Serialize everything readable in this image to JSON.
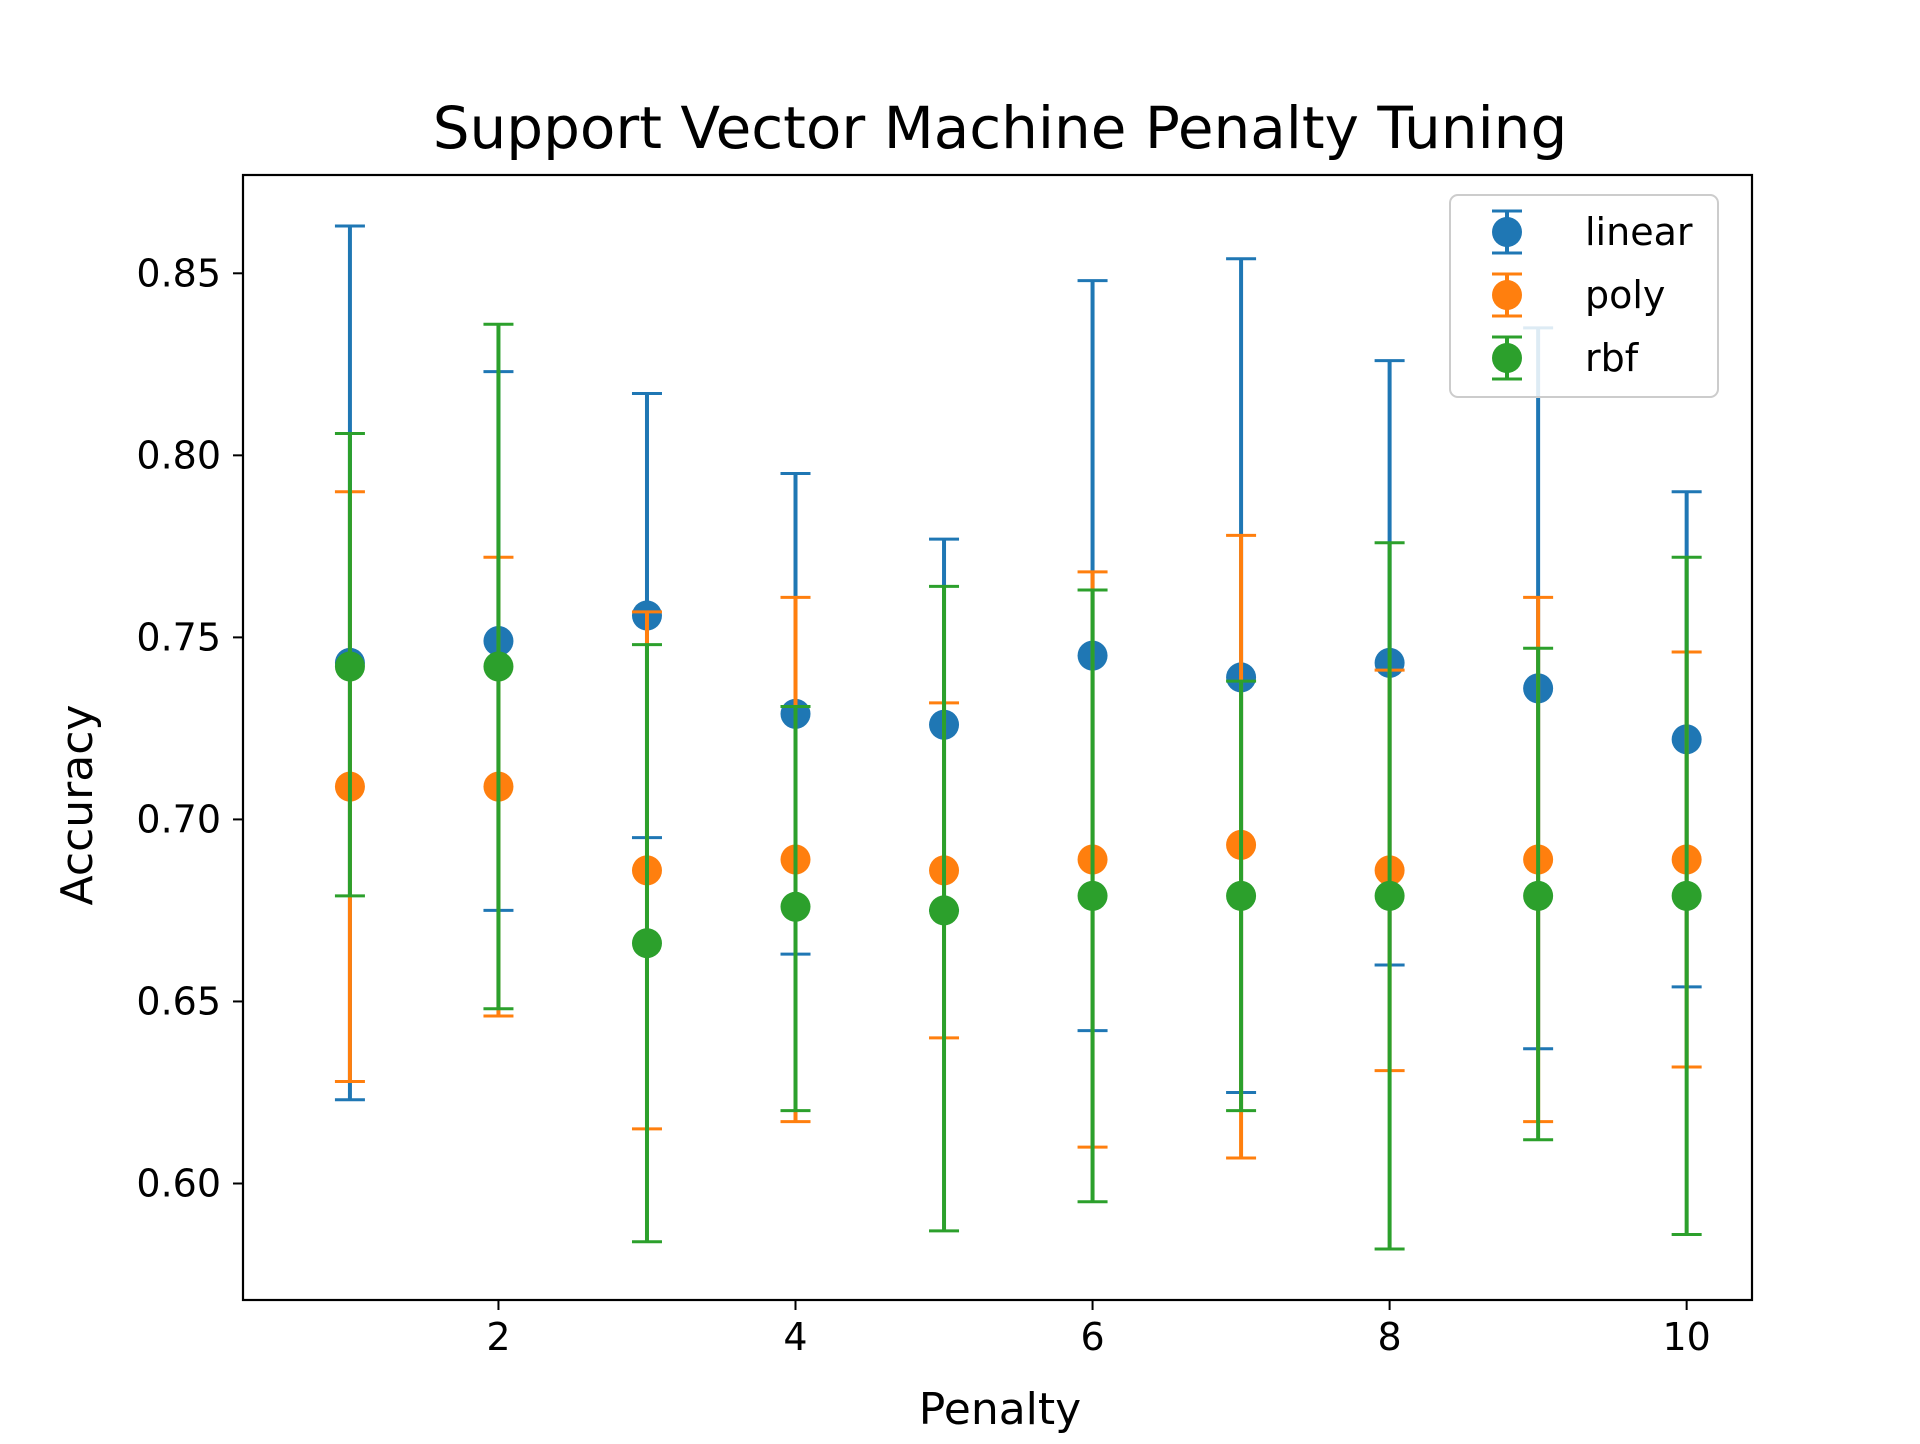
{
  "chart_data": {
    "type": "scatter",
    "title": "Support Vector Machine Penalty Tuning",
    "xlabel": "Penalty",
    "ylabel": "Accuracy",
    "xlim": [
      0.28,
      10.44
    ],
    "ylim": [
      0.568,
      0.877
    ],
    "xticks": [
      2,
      4,
      6,
      8,
      10
    ],
    "xtick_labels": [
      "2",
      "4",
      "6",
      "8",
      "10"
    ],
    "yticks": [
      0.6,
      0.65,
      0.7,
      0.75,
      0.8,
      0.85
    ],
    "ytick_labels": [
      "0.60",
      "0.65",
      "0.70",
      "0.75",
      "0.80",
      "0.85"
    ],
    "grid": false,
    "legend_position": "top-right",
    "x": [
      1,
      2,
      3,
      4,
      5,
      6,
      7,
      8,
      9,
      10
    ],
    "series": [
      {
        "name": "linear",
        "color": "#1f77b4",
        "values": [
          0.743,
          0.749,
          0.756,
          0.729,
          0.726,
          0.745,
          0.739,
          0.743,
          0.736,
          0.722
        ],
        "err_low": [
          0.623,
          0.675,
          0.695,
          0.663,
          0.675,
          0.642,
          0.625,
          0.66,
          0.637,
          0.654
        ],
        "err_high": [
          0.863,
          0.823,
          0.817,
          0.795,
          0.777,
          0.848,
          0.854,
          0.826,
          0.835,
          0.79
        ]
      },
      {
        "name": "poly",
        "color": "#ff7f0e",
        "values": [
          0.709,
          0.709,
          0.686,
          0.689,
          0.686,
          0.689,
          0.693,
          0.686,
          0.689,
          0.689
        ],
        "err_low": [
          0.628,
          0.646,
          0.615,
          0.617,
          0.64,
          0.61,
          0.607,
          0.631,
          0.617,
          0.632
        ],
        "err_high": [
          0.79,
          0.772,
          0.757,
          0.761,
          0.732,
          0.768,
          0.778,
          0.741,
          0.761,
          0.746
        ]
      },
      {
        "name": "rbf",
        "color": "#2ca02c",
        "values": [
          0.742,
          0.742,
          0.666,
          0.676,
          0.675,
          0.679,
          0.679,
          0.679,
          0.679,
          0.679
        ],
        "err_low": [
          0.679,
          0.648,
          0.584,
          0.62,
          0.587,
          0.595,
          0.62,
          0.582,
          0.612,
          0.586
        ],
        "err_high": [
          0.806,
          0.836,
          0.748,
          0.731,
          0.764,
          0.763,
          0.738,
          0.776,
          0.747,
          0.772
        ]
      }
    ]
  }
}
